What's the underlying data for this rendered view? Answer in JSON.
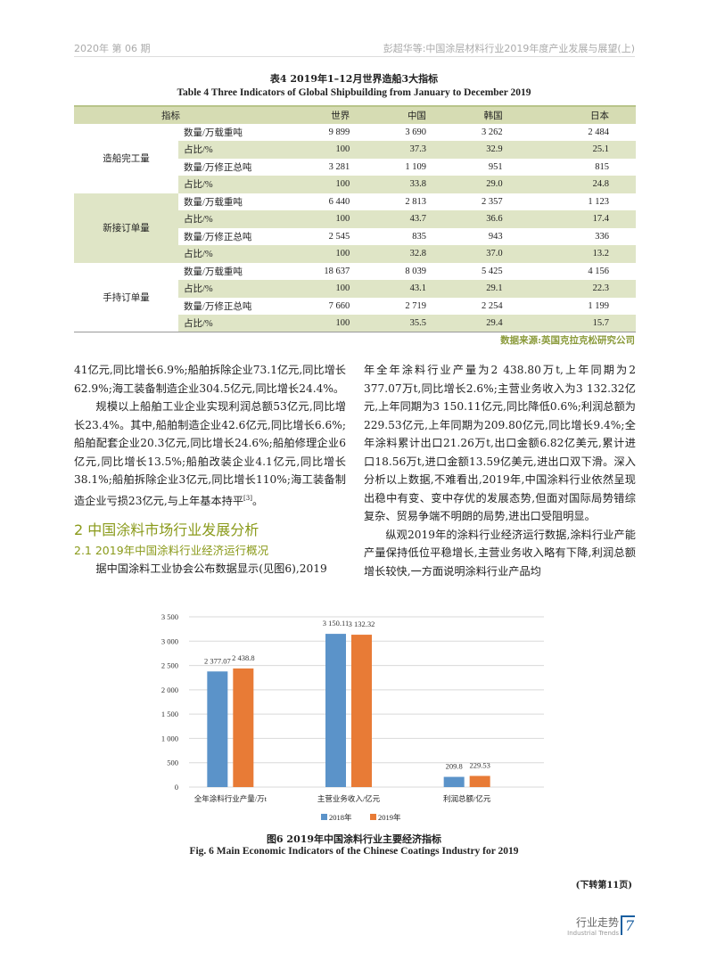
{
  "header": {
    "left": "2020年  第 06 期",
    "right": "彭超华等:中国涂层材料行业2019年度产业发展与展望(上)"
  },
  "table": {
    "caption_cn": "表4    2019年1–12月世界造船3大指标",
    "caption_en": "Table 4   Three Indicators of Global Shipbuilding from January to December 2019",
    "headers": [
      "指标",
      "世界",
      "中国",
      "韩国",
      "日本"
    ],
    "groups": [
      {
        "label": "造船完工量",
        "rows": [
          [
            "数量/万载重吨",
            "9 899",
            "3 690",
            "3 262",
            "2 484"
          ],
          [
            "占比/%",
            "100",
            "37.3",
            "32.9",
            "25.1"
          ],
          [
            "数量/万修正总吨",
            "3 281",
            "1 109",
            "951",
            "815"
          ],
          [
            "占比/%",
            "100",
            "33.8",
            "29.0",
            "24.8"
          ]
        ]
      },
      {
        "label": "新接订单量",
        "rows": [
          [
            "数量/万载重吨",
            "6 440",
            "2 813",
            "2 357",
            "1 123"
          ],
          [
            "占比/%",
            "100",
            "43.7",
            "36.6",
            "17.4"
          ],
          [
            "数量/万修正总吨",
            "2 545",
            "835",
            "943",
            "336"
          ],
          [
            "占比/%",
            "100",
            "32.8",
            "37.0",
            "13.2"
          ]
        ]
      },
      {
        "label": "手持订单量",
        "rows": [
          [
            "数量/万载重吨",
            "18 637",
            "8 039",
            "5 425",
            "4 156"
          ],
          [
            "占比/%",
            "100",
            "43.1",
            "29.1",
            "22.3"
          ],
          [
            "数量/万修正总吨",
            "7 660",
            "2 719",
            "2 254",
            "1 199"
          ],
          [
            "占比/%",
            "100",
            "35.5",
            "29.4",
            "15.7"
          ]
        ]
      }
    ],
    "source": "数据来源:英国克拉克松研究公司"
  },
  "left_col": {
    "p1": "41亿元,同比增长6.9%;船舶拆除企业73.1亿元,同比增长62.9%;海工装备制造企业304.5亿元,同比增长24.4%。",
    "p2": "规模以上船舶工业企业实现利润总额53亿元,同比增长23.4%。其中,船舶制造企业42.6亿元,同比增长6.6%;船舶配套企业20.3亿元,同比增长24.6%;船舶修理企业6亿元,同比增长13.5%;船舶改装企业4.1亿元,同比增长38.1%;船舶拆除企业3亿元,同比增长110%;海工装备制造企业亏损23亿元,与上年基本持平",
    "p2_ref": "[3]",
    "p2_end": "。",
    "h2": "2   中国涂料市场行业发展分析",
    "h3": "2.1   2019年中国涂料行业经济运行概况",
    "p3": "据中国涂料工业协会公布数据显示(见图6),2019"
  },
  "right_col": {
    "p1": "年全年涂料行业产量为2 438.80万t,上年同期为2 377.07万t,同比增长2.6%;主营业务收入为3 132.32亿元,上年同期为3 150.11亿元,同比降低0.6%;利润总额为229.53亿元,上年同期为209.80亿元,同比增长9.4%;全年涂料累计出口21.26万t,出口金额6.82亿美元,累计进口18.56万t,进口金额13.59亿美元,进出口双下滑。深入分析以上数据,不难看出,2019年,中国涂料行业依然呈现出稳中有变、变中存优的发展态势,但面对国际局势错综复杂、贸易争端不明朗的局势,进出口受阻明显。",
    "p2": "纵观2019年的涂料行业经济运行数据,涂料行业产能产量保持低位平稳增长,主营业务收入略有下降,利润总额增长较快,一方面说明涂料行业产品均"
  },
  "chart_data": {
    "type": "bar",
    "categories": [
      "全年涂料行业产量/万t",
      "主营业务收入/亿元",
      "利润总额/亿元"
    ],
    "series": [
      {
        "name": "2018年",
        "values": [
          2377.07,
          3150.11,
          209.8
        ],
        "labels": [
          "2 377.07",
          "3 150.11",
          "209.8"
        ],
        "color": "#5b93c9"
      },
      {
        "name": "2019年",
        "values": [
          2438.8,
          3132.32,
          229.53
        ],
        "labels": [
          "2 438.8",
          "3 132.32",
          "229.53"
        ],
        "color": "#e87b36"
      }
    ],
    "ylim": [
      0,
      3500
    ],
    "yticks": [
      0,
      500,
      1000,
      1500,
      2000,
      2500,
      3000,
      3500
    ],
    "ytick_labels": [
      "0",
      "500",
      "1 000",
      "1 500",
      "2 000",
      "2 500",
      "3 000",
      "3 500"
    ],
    "grid": true,
    "legend": "bottom",
    "title_cn": "图6    2019年中国涂料行业主要经济指标",
    "title_en": "Fig. 6   Main Economic Indicators of the Chinese Coatings Industry for 2019"
  },
  "footer": {
    "continued": "(下转第11页)",
    "section_cn": "行业走势",
    "section_en": "Industrial Trends",
    "page": "7",
    "accent": "#1a5fa0"
  }
}
